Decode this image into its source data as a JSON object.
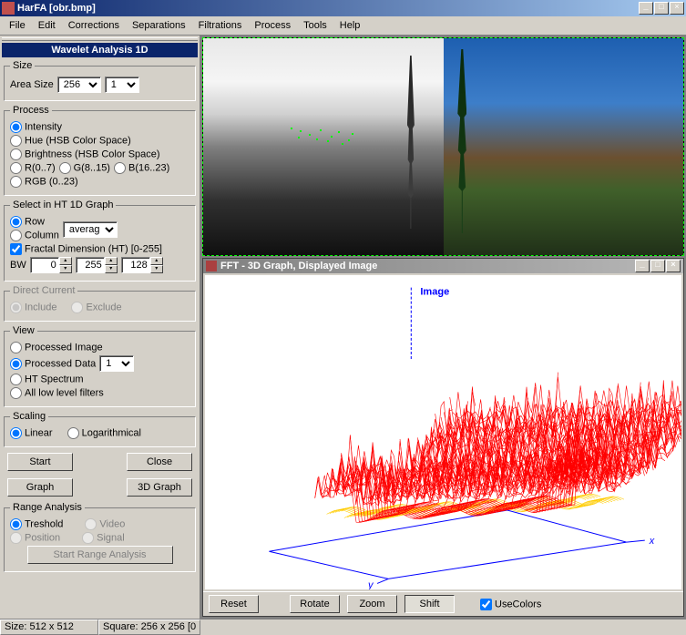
{
  "window": {
    "title": "HarFA [obr.bmp]"
  },
  "menus": [
    "File",
    "Edit",
    "Corrections",
    "Separations",
    "Filtrations",
    "Process",
    "Tools",
    "Help"
  ],
  "panel_title": "Wavelet Analysis 1D",
  "size_group": {
    "legend": "Size",
    "area_label": "Area Size",
    "area_value": "256",
    "mult_value": "1"
  },
  "process_group": {
    "legend": "Process",
    "options": [
      "Intensity",
      "Hue (HSB Color Space)",
      "Brightness (HSB Color Space)"
    ],
    "rgb_parts": [
      "R(0..7)",
      "G(8..15)",
      "B(16..23)"
    ],
    "rgb_all": "RGB (0..23)",
    "selected": 0
  },
  "select_ht": {
    "legend": "Select in HT 1D Graph",
    "row": "Row",
    "col": "Column",
    "mode": "average",
    "fd_label": "Fractal Dimension (HT) [0-255]",
    "fd_checked": true,
    "bw_label": "BW",
    "bw_low": "0",
    "bw_high": "255",
    "bw_mid": "128"
  },
  "dc_group": {
    "legend": "Direct Current",
    "include": "Include",
    "exclude": "Exclude"
  },
  "view_group": {
    "legend": "View",
    "opts": [
      "Processed Image",
      "Processed Data",
      "HT Spectrum",
      "All low level filters"
    ],
    "data_val": "1",
    "selected": 1
  },
  "scaling_group": {
    "legend": "Scaling",
    "linear": "Linear",
    "log": "Logarithmical",
    "selected": 0
  },
  "buttons": {
    "start": "Start",
    "close": "Close",
    "graph": "Graph",
    "graph3d": "3D Graph",
    "reset": "Reset",
    "rotate": "Rotate",
    "zoom": "Zoom",
    "shift": "Shift",
    "usecolors": "UseColors",
    "start_range": "Start Range Analysis"
  },
  "range_group": {
    "legend": "Range Analysis",
    "treshold": "Treshold",
    "video": "Video",
    "position": "Position",
    "signal": "Signal"
  },
  "sub_window": {
    "title": "FFT - 3D Graph, Displayed Image"
  },
  "graph3d": {
    "axis_label_x": "x",
    "axis_label_y": "y",
    "axis_label_z": "Image",
    "axis_color": "#0000ff",
    "wire_color_primary": "#ff0000",
    "wire_color_secondary": "#ffcc00",
    "background": "#ffffff"
  },
  "status": {
    "size": "Size: 512 x 512",
    "square": "Square: 256 x 256 [0"
  },
  "usecolors_checked": true
}
